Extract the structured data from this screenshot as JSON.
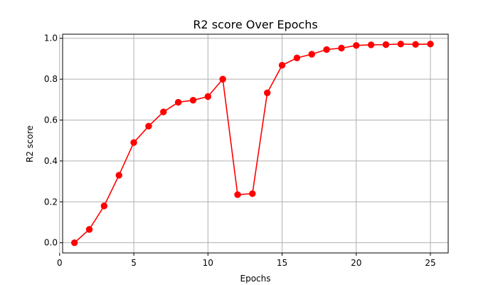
{
  "chart_data": {
    "type": "line",
    "title": "R2 score Over Epochs",
    "xlabel": "Epochs",
    "ylabel": "R2 score",
    "xlim": [
      0.2,
      26.2
    ],
    "ylim": [
      -0.05,
      1.02
    ],
    "grid": true,
    "x_ticks": [
      0,
      5,
      10,
      15,
      20,
      25
    ],
    "y_ticks": [
      0.0,
      0.2,
      0.4,
      0.6,
      0.8,
      1.0
    ],
    "x_tick_labels": [
      "0",
      "5",
      "10",
      "15",
      "20",
      "25"
    ],
    "y_tick_labels": [
      "0.0",
      "0.2",
      "0.4",
      "0.6",
      "0.8",
      "1.0"
    ],
    "series": [
      {
        "color": "#ff0000",
        "marker": "circle",
        "x": [
          1,
          2,
          3,
          4,
          5,
          6,
          7,
          8,
          9,
          10,
          11,
          12,
          13,
          14,
          15,
          16,
          17,
          18,
          19,
          20,
          21,
          22,
          23,
          24,
          25
        ],
        "y": [
          0.0,
          0.065,
          0.18,
          0.33,
          0.49,
          0.57,
          0.64,
          0.687,
          0.697,
          0.715,
          0.8,
          0.235,
          0.24,
          0.733,
          0.868,
          0.904,
          0.922,
          0.945,
          0.952,
          0.965,
          0.968,
          0.969,
          0.972,
          0.97,
          0.972
        ]
      }
    ]
  }
}
